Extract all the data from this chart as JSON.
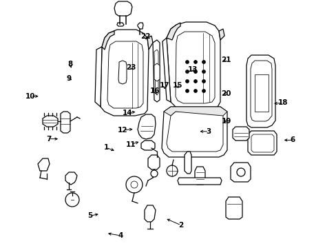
{
  "bg_color": "#ffffff",
  "line_color": "#000000",
  "figsize": [
    4.89,
    3.6
  ],
  "dpi": 100,
  "labels": {
    "1": [
      0.315,
      0.595,
      0.345,
      0.61
    ],
    "2": [
      0.538,
      0.908,
      0.49,
      0.88
    ],
    "3": [
      0.62,
      0.53,
      0.588,
      0.53
    ],
    "4": [
      0.358,
      0.95,
      0.315,
      0.94
    ],
    "5": [
      0.268,
      0.87,
      0.298,
      0.862
    ],
    "6": [
      0.87,
      0.565,
      0.838,
      0.565
    ],
    "7": [
      0.145,
      0.56,
      0.178,
      0.56
    ],
    "8": [
      0.208,
      0.258,
      0.214,
      0.282
    ],
    "9": [
      0.204,
      0.318,
      0.214,
      0.322
    ],
    "10": [
      0.09,
      0.388,
      0.12,
      0.388
    ],
    "11": [
      0.388,
      0.582,
      0.418,
      0.57
    ],
    "12": [
      0.365,
      0.525,
      0.4,
      0.52
    ],
    "13": [
      0.572,
      0.28,
      0.582,
      0.295
    ],
    "14": [
      0.378,
      0.455,
      0.408,
      0.45
    ],
    "15": [
      0.528,
      0.345,
      0.53,
      0.365
    ],
    "16": [
      0.46,
      0.368,
      0.468,
      0.388
    ],
    "17": [
      0.49,
      0.345,
      0.488,
      0.368
    ],
    "18": [
      0.84,
      0.415,
      0.808,
      0.418
    ],
    "19": [
      0.672,
      0.488,
      0.66,
      0.492
    ],
    "20": [
      0.672,
      0.378,
      0.658,
      0.382
    ],
    "21": [
      0.672,
      0.242,
      0.66,
      0.255
    ],
    "22": [
      0.432,
      0.148,
      0.436,
      0.168
    ],
    "23": [
      0.39,
      0.272,
      0.398,
      0.288
    ]
  }
}
